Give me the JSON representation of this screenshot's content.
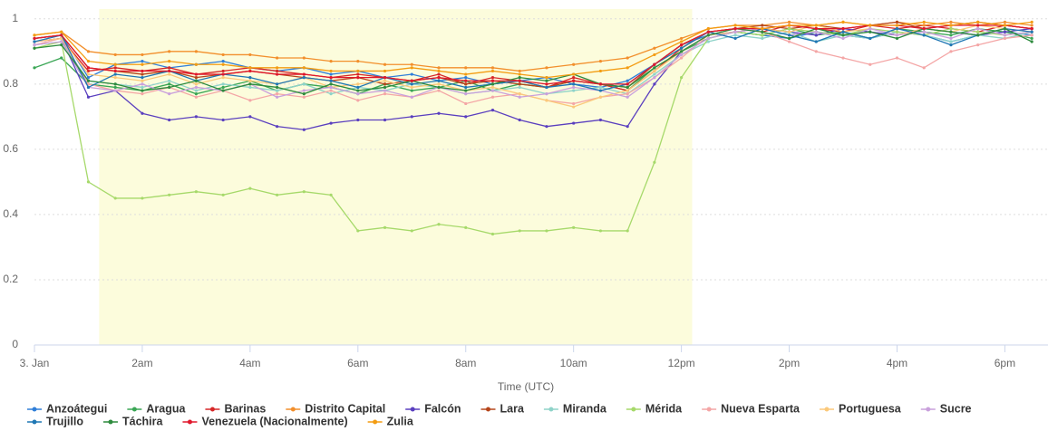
{
  "chart_data": {
    "type": "line",
    "x_label": "Time (UTC)",
    "x": [
      0,
      0.5,
      1,
      1.5,
      2,
      2.5,
      3,
      3.5,
      4,
      4.5,
      5,
      5.5,
      6,
      6.5,
      7,
      7.5,
      8,
      8.5,
      9,
      9.5,
      10,
      10.5,
      11,
      11.5,
      12,
      12.5,
      13,
      13.5,
      14,
      14.5,
      15,
      15.5,
      16,
      16.5,
      17,
      17.5,
      18,
      18.5
    ],
    "xlim": [
      0,
      18.8
    ],
    "xticks": [
      {
        "value": 0,
        "label": "3. Jan"
      },
      {
        "value": 2,
        "label": "2am"
      },
      {
        "value": 4,
        "label": "4am"
      },
      {
        "value": 6,
        "label": "6am"
      },
      {
        "value": 8,
        "label": "8am"
      },
      {
        "value": 10,
        "label": "10am"
      },
      {
        "value": 12,
        "label": "12pm"
      },
      {
        "value": 14,
        "label": "2pm"
      },
      {
        "value": 16,
        "label": "4pm"
      },
      {
        "value": 18,
        "label": "6pm"
      }
    ],
    "ylim": [
      0,
      1.03
    ],
    "yticks": [
      0,
      0.2,
      0.4,
      0.6,
      0.8,
      1
    ],
    "grid": true,
    "plot_band": {
      "from": 1.2,
      "to": 12.2,
      "color": "#fcfcdc"
    },
    "legend": "bottom",
    "series": [
      {
        "name": "Anzoátegui",
        "color": "#2f7ed8",
        "values": [
          0.94,
          0.95,
          0.82,
          0.86,
          0.87,
          0.85,
          0.86,
          0.87,
          0.85,
          0.84,
          0.85,
          0.83,
          0.84,
          0.82,
          0.83,
          0.81,
          0.82,
          0.8,
          0.81,
          0.82,
          0.8,
          0.79,
          0.81,
          0.86,
          0.92,
          0.95,
          0.96,
          0.95,
          0.94,
          0.96,
          0.95,
          0.94,
          0.96,
          0.95,
          0.93,
          0.95,
          0.96,
          0.95
        ]
      },
      {
        "name": "Aragua",
        "color": "#3aa655",
        "values": [
          0.85,
          0.88,
          0.8,
          0.79,
          0.78,
          0.8,
          0.77,
          0.79,
          0.81,
          0.78,
          0.8,
          0.79,
          0.77,
          0.8,
          0.78,
          0.79,
          0.81,
          0.78,
          0.8,
          0.79,
          0.81,
          0.8,
          0.78,
          0.85,
          0.9,
          0.94,
          0.96,
          0.95,
          0.97,
          0.95,
          0.96,
          0.94,
          0.97,
          0.96,
          0.95,
          0.97,
          0.96,
          0.94
        ]
      },
      {
        "name": "Barinas",
        "color": "#d62728",
        "values": [
          0.93,
          0.94,
          0.84,
          0.85,
          0.84,
          0.85,
          0.83,
          0.84,
          0.85,
          0.84,
          0.83,
          0.82,
          0.83,
          0.82,
          0.81,
          0.83,
          0.8,
          0.82,
          0.81,
          0.79,
          0.82,
          0.8,
          0.78,
          0.84,
          0.91,
          0.96,
          0.97,
          0.96,
          0.98,
          0.97,
          0.96,
          0.98,
          0.97,
          0.98,
          0.97,
          0.96,
          0.98,
          0.97
        ]
      },
      {
        "name": "Distrito Capital",
        "color": "#f28f2c",
        "values": [
          0.95,
          0.96,
          0.9,
          0.89,
          0.89,
          0.9,
          0.9,
          0.89,
          0.89,
          0.88,
          0.88,
          0.87,
          0.87,
          0.86,
          0.86,
          0.85,
          0.85,
          0.85,
          0.84,
          0.85,
          0.86,
          0.87,
          0.88,
          0.91,
          0.94,
          0.97,
          0.98,
          0.98,
          0.99,
          0.98,
          0.99,
          0.98,
          0.99,
          0.98,
          0.99,
          0.98,
          0.99,
          0.98
        ]
      },
      {
        "name": "Falcón",
        "color": "#5a3fbf",
        "values": [
          0.93,
          0.94,
          0.76,
          0.78,
          0.71,
          0.69,
          0.7,
          0.69,
          0.7,
          0.67,
          0.66,
          0.68,
          0.69,
          0.69,
          0.7,
          0.71,
          0.7,
          0.72,
          0.69,
          0.67,
          0.68,
          0.69,
          0.67,
          0.8,
          0.9,
          0.95,
          0.96,
          0.97,
          0.96,
          0.95,
          0.97,
          0.96,
          0.95,
          0.97,
          0.96,
          0.95,
          0.96,
          0.97
        ]
      },
      {
        "name": "Lara",
        "color": "#b5451b",
        "values": [
          0.94,
          0.95,
          0.85,
          0.84,
          0.83,
          0.84,
          0.82,
          0.83,
          0.84,
          0.83,
          0.82,
          0.81,
          0.82,
          0.8,
          0.81,
          0.82,
          0.8,
          0.81,
          0.8,
          0.79,
          0.81,
          0.8,
          0.79,
          0.86,
          0.92,
          0.96,
          0.97,
          0.98,
          0.97,
          0.98,
          0.97,
          0.98,
          0.99,
          0.97,
          0.98,
          0.99,
          0.98,
          0.97
        ]
      },
      {
        "name": "Miranda",
        "color": "#8fd3c9",
        "values": [
          0.92,
          0.93,
          0.81,
          0.8,
          0.79,
          0.81,
          0.78,
          0.8,
          0.79,
          0.78,
          0.8,
          0.77,
          0.79,
          0.78,
          0.8,
          0.79,
          0.77,
          0.78,
          0.79,
          0.77,
          0.78,
          0.79,
          0.77,
          0.83,
          0.89,
          0.93,
          0.95,
          0.94,
          0.96,
          0.93,
          0.95,
          0.94,
          0.96,
          0.95,
          0.93,
          0.95,
          0.94,
          0.96
        ]
      },
      {
        "name": "Mérida",
        "color": "#a6d96a",
        "values": [
          0.91,
          0.93,
          0.5,
          0.45,
          0.45,
          0.46,
          0.47,
          0.46,
          0.48,
          0.46,
          0.47,
          0.46,
          0.35,
          0.36,
          0.35,
          0.37,
          0.36,
          0.34,
          0.35,
          0.35,
          0.36,
          0.35,
          0.35,
          0.56,
          0.82,
          0.94,
          0.96,
          0.95,
          0.97,
          0.96,
          0.95,
          0.97,
          0.96,
          0.95,
          0.97,
          0.96,
          0.95,
          0.96
        ]
      },
      {
        "name": "Nueva Esparta",
        "color": "#f4a6a6",
        "values": [
          0.92,
          0.94,
          0.8,
          0.78,
          0.77,
          0.79,
          0.76,
          0.78,
          0.75,
          0.77,
          0.76,
          0.78,
          0.75,
          0.77,
          0.76,
          0.78,
          0.74,
          0.76,
          0.77,
          0.75,
          0.74,
          0.76,
          0.77,
          0.82,
          0.88,
          0.95,
          0.97,
          0.96,
          0.93,
          0.9,
          0.88,
          0.86,
          0.88,
          0.85,
          0.9,
          0.92,
          0.94,
          0.95
        ]
      },
      {
        "name": "Portuguesa",
        "color": "#fbc97a",
        "values": [
          0.93,
          0.94,
          0.83,
          0.82,
          0.81,
          0.83,
          0.8,
          0.82,
          0.81,
          0.8,
          0.82,
          0.79,
          0.8,
          0.81,
          0.79,
          0.8,
          0.78,
          0.79,
          0.77,
          0.75,
          0.73,
          0.76,
          0.78,
          0.84,
          0.9,
          0.95,
          0.96,
          0.97,
          0.96,
          0.98,
          0.96,
          0.97,
          0.95,
          0.97,
          0.96,
          0.98,
          0.97,
          0.96
        ]
      },
      {
        "name": "Sucre",
        "color": "#c9a0dc",
        "values": [
          0.92,
          0.93,
          0.79,
          0.78,
          0.8,
          0.77,
          0.79,
          0.78,
          0.8,
          0.76,
          0.78,
          0.79,
          0.77,
          0.78,
          0.76,
          0.79,
          0.77,
          0.78,
          0.76,
          0.77,
          0.79,
          0.78,
          0.76,
          0.82,
          0.89,
          0.94,
          0.96,
          0.97,
          0.95,
          0.96,
          0.94,
          0.97,
          0.95,
          0.96,
          0.94,
          0.97,
          0.95,
          0.96
        ]
      },
      {
        "name": "Trujillo",
        "color": "#1f77b4",
        "values": [
          0.93,
          0.95,
          0.79,
          0.83,
          0.82,
          0.84,
          0.81,
          0.83,
          0.82,
          0.8,
          0.82,
          0.81,
          0.79,
          0.82,
          0.8,
          0.81,
          0.79,
          0.8,
          0.81,
          0.79,
          0.8,
          0.78,
          0.8,
          0.86,
          0.91,
          0.96,
          0.94,
          0.97,
          0.95,
          0.93,
          0.96,
          0.94,
          0.97,
          0.95,
          0.92,
          0.95,
          0.97,
          0.96
        ]
      },
      {
        "name": "Táchira",
        "color": "#2e8b3e",
        "values": [
          0.91,
          0.92,
          0.81,
          0.8,
          0.78,
          0.79,
          0.81,
          0.78,
          0.8,
          0.79,
          0.77,
          0.8,
          0.78,
          0.79,
          0.81,
          0.79,
          0.78,
          0.8,
          0.82,
          0.81,
          0.83,
          0.8,
          0.79,
          0.85,
          0.9,
          0.95,
          0.97,
          0.96,
          0.94,
          0.97,
          0.95,
          0.96,
          0.94,
          0.97,
          0.96,
          0.95,
          0.97,
          0.93
        ]
      },
      {
        "name": "Venezuela (Nacionalmente)",
        "color": "#e0182d",
        "values": [
          0.94,
          0.95,
          0.85,
          0.84,
          0.84,
          0.84,
          0.83,
          0.83,
          0.84,
          0.83,
          0.83,
          0.82,
          0.82,
          0.82,
          0.81,
          0.82,
          0.81,
          0.81,
          0.81,
          0.8,
          0.81,
          0.8,
          0.8,
          0.86,
          0.92,
          0.96,
          0.97,
          0.97,
          0.98,
          0.97,
          0.97,
          0.98,
          0.98,
          0.97,
          0.98,
          0.98,
          0.98,
          0.97
        ]
      },
      {
        "name": "Zulia",
        "color": "#f39c12",
        "values": [
          0.95,
          0.96,
          0.87,
          0.86,
          0.86,
          0.87,
          0.86,
          0.86,
          0.85,
          0.85,
          0.85,
          0.84,
          0.84,
          0.84,
          0.85,
          0.84,
          0.83,
          0.84,
          0.83,
          0.82,
          0.83,
          0.84,
          0.85,
          0.89,
          0.93,
          0.97,
          0.98,
          0.97,
          0.98,
          0.98,
          0.99,
          0.98,
          0.98,
          0.99,
          0.98,
          0.99,
          0.98,
          0.99
        ]
      }
    ]
  }
}
